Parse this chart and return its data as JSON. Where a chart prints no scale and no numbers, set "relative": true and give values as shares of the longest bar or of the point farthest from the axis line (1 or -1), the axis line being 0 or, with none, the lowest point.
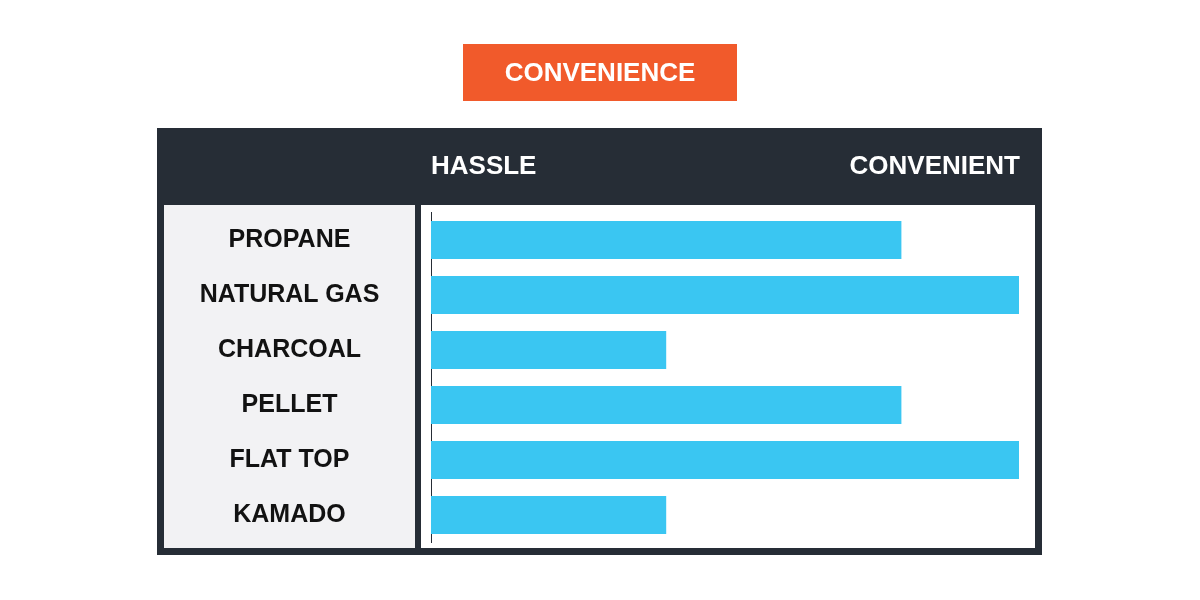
{
  "chart_data": {
    "type": "bar",
    "orientation": "horizontal",
    "relative": true,
    "title": "CONVENIENCE",
    "annotations": [
      "HASSLE",
      "CONVENIENT"
    ],
    "categories": [
      "PROPANE",
      "NATURAL GAS",
      "CHARCOAL",
      "PELLET",
      "FLAT TOP",
      "KAMADO"
    ],
    "values": [
      0.8,
      1,
      0.4,
      0.8,
      1,
      0.4
    ],
    "color": "#3ac6f2"
  }
}
